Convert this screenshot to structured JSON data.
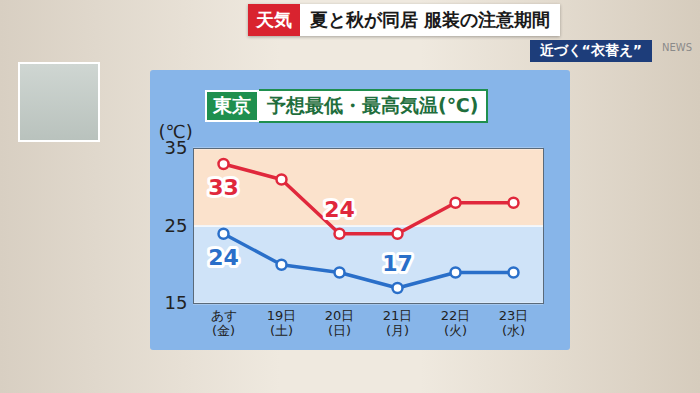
{
  "header": {
    "segment": "天気",
    "headline": "夏と秋が同居 服装の注意期間",
    "strip": "近づく“衣替え”",
    "logo": "NEWS"
  },
  "chart_data": {
    "type": "line",
    "location": "東京",
    "title": "予想最低・最高気温(℃)",
    "ylabel": "(℃)",
    "categories": [
      "あす\n(金)",
      "19日\n(土)",
      "20日\n(日)",
      "21日\n(月)",
      "22日\n(火)",
      "23日\n(水)"
    ],
    "series": [
      {
        "color": "#e0283c",
        "values": [
          33,
          31,
          24,
          24,
          28,
          28
        ],
        "value_labels": [
          "33",
          null,
          "24",
          null,
          null,
          null
        ]
      },
      {
        "color": "#2a6fc9",
        "values": [
          24,
          20,
          19,
          17,
          19,
          19
        ],
        "value_labels": [
          "24",
          null,
          null,
          "17",
          null,
          null
        ]
      }
    ],
    "ylim": [
      15,
      35
    ],
    "yticks": [
      15,
      25,
      35
    ],
    "grid": true,
    "data_labels": true,
    "marker": "circle",
    "line_style": "solid"
  }
}
